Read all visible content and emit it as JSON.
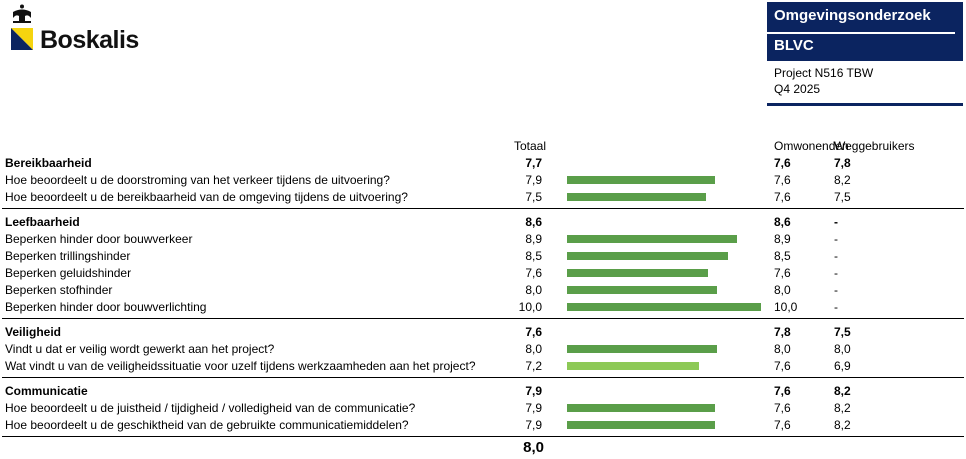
{
  "header": {
    "logo_text": "Boskalis",
    "title": "Omgevingsonderzoek",
    "subtitle": "BLVC",
    "project": "Project N516 TBW",
    "period": "Q4 2025",
    "brand_color": "#0b2460"
  },
  "columns": {
    "total": "Totaal",
    "residents": "Omwonenden",
    "road_users": "Weggebruikers"
  },
  "bar_colors": {
    "default": "#5a9e49",
    "highlight": "#8dc956"
  },
  "groups": [
    {
      "label": "Bereikbaarheid",
      "total": "7,7",
      "residents": "7,6",
      "road_users": "7,8",
      "items": [
        {
          "label": "Hoe beoordeelt u de doorstroming van het verkeer tijdens de uitvoering?",
          "total": "7,9",
          "value": 7.9,
          "residents": "7,6",
          "road_users": "8,2"
        },
        {
          "label": "Hoe beoordeelt u de bereikbaarheid van de omgeving tijdens de uitvoering?",
          "total": "7,5",
          "value": 7.5,
          "residents": "7,6",
          "road_users": "7,5"
        }
      ]
    },
    {
      "label": "Leefbaarheid",
      "total": "8,6",
      "residents": "8,6",
      "road_users": "-",
      "items": [
        {
          "label": "Beperken hinder door bouwverkeer",
          "total": "8,9",
          "value": 8.9,
          "residents": "8,9",
          "road_users": "-"
        },
        {
          "label": "Beperken trillingshinder",
          "total": "8,5",
          "value": 8.5,
          "residents": "8,5",
          "road_users": "-"
        },
        {
          "label": "Beperken geluidshinder",
          "total": "7,6",
          "value": 7.6,
          "residents": "7,6",
          "road_users": "-"
        },
        {
          "label": "Beperken stofhinder",
          "total": "8,0",
          "value": 8.0,
          "residents": "8,0",
          "road_users": "-"
        },
        {
          "label": "Beperken hinder door bouwverlichting",
          "total": "10,0",
          "value": 10.0,
          "residents": "10,0",
          "road_users": "-"
        }
      ]
    },
    {
      "label": "Veiligheid",
      "total": "7,6",
      "residents": "7,8",
      "road_users": "7,5",
      "items": [
        {
          "label": "Vindt u dat er veilig wordt gewerkt aan het project?",
          "total": "8,0",
          "value": 8.0,
          "residents": "8,0",
          "road_users": "8,0"
        },
        {
          "label": "Wat vindt u van de veiligheidssituatie voor uzelf tijdens werkzaamheden aan het project?",
          "total": "7,2",
          "value": 7.2,
          "residents": "7,6",
          "road_users": "6,9",
          "light": true
        }
      ]
    },
    {
      "label": "Communicatie",
      "total": "7,9",
      "residents": "7,6",
      "road_users": "8,2",
      "items": [
        {
          "label": "Hoe beoordeelt u de juistheid / tijdigheid / volledigheid van de communicatie?",
          "total": "7,9",
          "value": 7.9,
          "residents": "7,6",
          "road_users": "8,2"
        },
        {
          "label": "Hoe beoordeelt u de geschiktheid van de gebruikte communicatiemiddelen?",
          "total": "7,9",
          "value": 7.9,
          "residents": "7,6",
          "road_users": "8,2"
        }
      ]
    }
  ],
  "grand_total": "8,0"
}
